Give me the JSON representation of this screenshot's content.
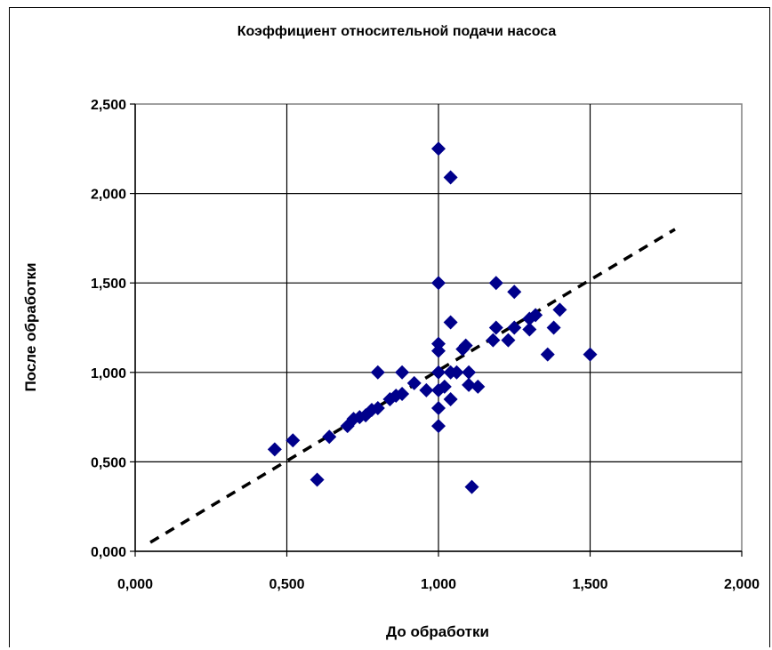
{
  "chart_data": {
    "type": "scatter",
    "title": "Коэффициент относительной подачи насоса",
    "xlabel": "До обработки",
    "ylabel": "После обработки",
    "xlim": [
      0,
      2
    ],
    "ylim": [
      0,
      2.5
    ],
    "x_ticks": [
      "0,000",
      "0,500",
      "1,000",
      "1,500",
      "2,000"
    ],
    "y_ticks": [
      "0,000",
      "0,500",
      "1,000",
      "1,500",
      "2,000",
      "2,500"
    ],
    "grid": true,
    "legend": "none",
    "marker_color": "#00008B",
    "trendline": {
      "style": "dashed",
      "color": "#000000",
      "x": [
        0.05,
        1.78
      ],
      "y": [
        0.05,
        1.8
      ]
    },
    "series": [
      {
        "points": [
          [
            0.46,
            0.57
          ],
          [
            0.52,
            0.62
          ],
          [
            0.6,
            0.4
          ],
          [
            0.64,
            0.64
          ],
          [
            0.7,
            0.7
          ],
          [
            0.72,
            0.74
          ],
          [
            0.74,
            0.75
          ],
          [
            0.76,
            0.76
          ],
          [
            0.78,
            0.79
          ],
          [
            0.8,
            0.8
          ],
          [
            0.8,
            1.0
          ],
          [
            0.84,
            0.85
          ],
          [
            0.86,
            0.87
          ],
          [
            0.88,
            0.88
          ],
          [
            0.88,
            1.0
          ],
          [
            0.92,
            0.94
          ],
          [
            0.96,
            0.9
          ],
          [
            1.0,
            0.7
          ],
          [
            1.0,
            0.8
          ],
          [
            1.0,
            0.9
          ],
          [
            1.0,
            1.0
          ],
          [
            1.0,
            1.12
          ],
          [
            1.0,
            1.16
          ],
          [
            1.0,
            1.5
          ],
          [
            1.0,
            2.25
          ],
          [
            1.02,
            0.92
          ],
          [
            1.04,
            0.85
          ],
          [
            1.04,
            1.0
          ],
          [
            1.04,
            1.28
          ],
          [
            1.04,
            2.09
          ],
          [
            1.06,
            1.0
          ],
          [
            1.08,
            1.13
          ],
          [
            1.09,
            1.15
          ],
          [
            1.1,
            0.93
          ],
          [
            1.1,
            1.0
          ],
          [
            1.11,
            0.36
          ],
          [
            1.13,
            0.92
          ],
          [
            1.18,
            1.18
          ],
          [
            1.19,
            1.5
          ],
          [
            1.19,
            1.25
          ],
          [
            1.23,
            1.18
          ],
          [
            1.25,
            1.25
          ],
          [
            1.25,
            1.45
          ],
          [
            1.3,
            1.24
          ],
          [
            1.3,
            1.3
          ],
          [
            1.32,
            1.32
          ],
          [
            1.36,
            1.1
          ],
          [
            1.38,
            1.25
          ],
          [
            1.4,
            1.35
          ],
          [
            1.5,
            1.1
          ]
        ]
      }
    ]
  }
}
